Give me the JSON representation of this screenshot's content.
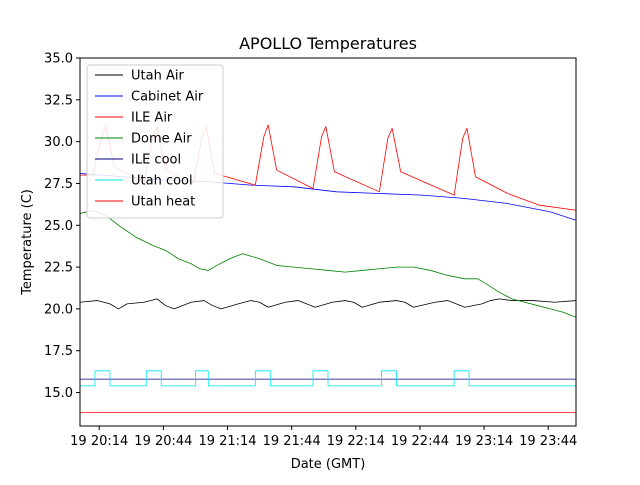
{
  "chart_data": {
    "type": "line",
    "title": "APOLLO Temperatures",
    "xlabel": "Date (GMT)",
    "ylabel": "Temperature (C)",
    "xlim": [
      0,
      232
    ],
    "ylim": [
      13.0,
      35.0
    ],
    "yticks": [
      15.0,
      17.5,
      20.0,
      22.5,
      25.0,
      27.5,
      30.0,
      32.5,
      35.0
    ],
    "ytick_labels": [
      "15.0",
      "17.5",
      "20.0",
      "22.5",
      "25.0",
      "27.5",
      "30.0",
      "32.5",
      "35.0"
    ],
    "xticks": [
      9,
      39,
      69,
      99,
      129,
      159,
      189,
      219
    ],
    "xtick_labels": [
      "19 20:14",
      "19 20:44",
      "19 21:14",
      "19 21:44",
      "19 22:14",
      "19 22:44",
      "19 23:14",
      "19 23:44"
    ],
    "x_units": "minutes after 19 20:05",
    "legend_position": "upper left",
    "series": [
      {
        "name": "Utah Air",
        "color": "#000000",
        "x": [
          0,
          8,
          14,
          18,
          22,
          30,
          36,
          40,
          44,
          52,
          58,
          62,
          66,
          74,
          80,
          84,
          88,
          96,
          102,
          106,
          110,
          118,
          124,
          128,
          132,
          140,
          148,
          152,
          156,
          166,
          172,
          176,
          180,
          188,
          192,
          196,
          202,
          212,
          222,
          232
        ],
        "y": [
          20.4,
          20.5,
          20.3,
          20.0,
          20.3,
          20.4,
          20.6,
          20.2,
          20.0,
          20.4,
          20.5,
          20.2,
          20.0,
          20.3,
          20.5,
          20.4,
          20.1,
          20.4,
          20.5,
          20.3,
          20.1,
          20.4,
          20.5,
          20.4,
          20.1,
          20.4,
          20.5,
          20.4,
          20.1,
          20.4,
          20.5,
          20.3,
          20.1,
          20.3,
          20.5,
          20.6,
          20.5,
          20.5,
          20.4,
          20.5
        ]
      },
      {
        "name": "Cabinet Air",
        "color": "#0000ff",
        "x": [
          0,
          20,
          40,
          60,
          80,
          100,
          120,
          140,
          160,
          180,
          200,
          220,
          232
        ],
        "y": [
          28.1,
          27.9,
          27.7,
          27.6,
          27.4,
          27.3,
          27.0,
          26.9,
          26.8,
          26.6,
          26.3,
          25.8,
          25.3
        ]
      },
      {
        "name": "ILE Air",
        "color": "#ff0000",
        "x": [
          0,
          6,
          10,
          12,
          16,
          30,
          34,
          36,
          40,
          53,
          57,
          59,
          63,
          82,
          86,
          88,
          92,
          109,
          113,
          115,
          119,
          140,
          144,
          146,
          150,
          175,
          179,
          181,
          185,
          200,
          215,
          232
        ],
        "y": [
          28.0,
          28.0,
          30.2,
          31.0,
          28.5,
          27.6,
          30.3,
          30.9,
          28.3,
          27.5,
          30.2,
          30.9,
          28.1,
          27.4,
          30.3,
          31.0,
          28.3,
          27.2,
          30.3,
          30.9,
          28.2,
          27.0,
          30.2,
          30.8,
          28.2,
          26.8,
          30.2,
          30.8,
          27.9,
          26.9,
          26.2,
          25.9
        ]
      },
      {
        "name": "Dome Air",
        "color": "#008000",
        "x": [
          0,
          6,
          12,
          18,
          26,
          34,
          40,
          46,
          52,
          56,
          60,
          64,
          70,
          76,
          84,
          92,
          100,
          108,
          116,
          124,
          132,
          140,
          148,
          156,
          164,
          172,
          180,
          186,
          190,
          196,
          202,
          208,
          214,
          220,
          226,
          232
        ],
        "y": [
          25.7,
          25.9,
          25.6,
          25.0,
          24.3,
          23.8,
          23.5,
          23.0,
          22.7,
          22.4,
          22.3,
          22.6,
          23.0,
          23.3,
          23.0,
          22.6,
          22.5,
          22.4,
          22.3,
          22.2,
          22.3,
          22.4,
          22.5,
          22.5,
          22.3,
          22.0,
          21.8,
          21.8,
          21.5,
          21.0,
          20.6,
          20.4,
          20.2,
          20.0,
          19.8,
          19.5
        ]
      },
      {
        "name": "ILE cool",
        "color": "#00008b",
        "x": [
          0,
          232
        ],
        "y": [
          15.8,
          15.8
        ]
      },
      {
        "name": "Utah cool",
        "color": "#00e5ee",
        "x": [
          0,
          7,
          7,
          14,
          14,
          31,
          31,
          38,
          38,
          54,
          54,
          60,
          60,
          82,
          82,
          89,
          89,
          109,
          109,
          116,
          116,
          141,
          141,
          148,
          148,
          175,
          175,
          182,
          182,
          232
        ],
        "y": [
          15.4,
          15.4,
          16.3,
          16.3,
          15.4,
          15.4,
          16.3,
          16.3,
          15.4,
          15.4,
          16.3,
          16.3,
          15.4,
          15.4,
          16.3,
          16.3,
          15.4,
          15.4,
          16.3,
          16.3,
          15.4,
          15.4,
          16.3,
          16.3,
          15.4,
          15.4,
          16.3,
          16.3,
          15.4,
          15.4
        ]
      },
      {
        "name": "Utah heat",
        "color": "#ff0000",
        "x": [
          0,
          232
        ],
        "y": [
          13.8,
          13.8
        ]
      }
    ]
  }
}
